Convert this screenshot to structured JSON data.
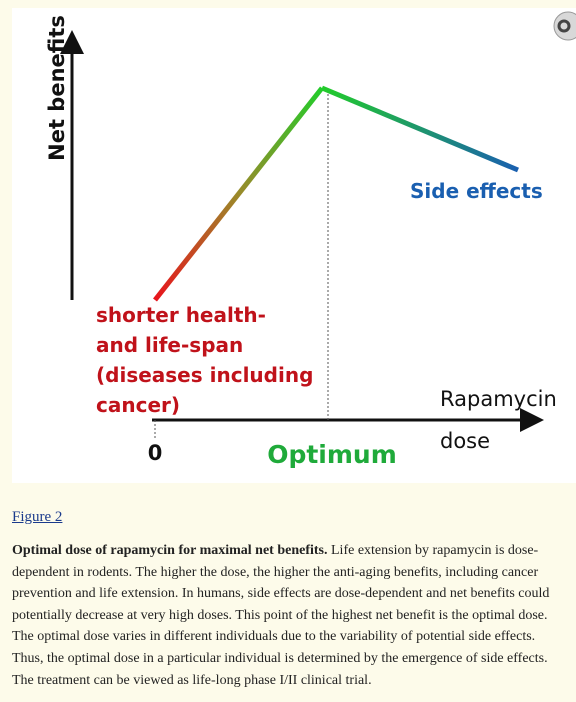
{
  "figure": {
    "y_axis_label": "Net benefits",
    "low_label_lines": [
      "shorter health-",
      "and life-span",
      "(diseases including",
      "cancer)"
    ],
    "side_effects_label": "Side effects",
    "x_axis_label_lines": [
      "Rapamycin",
      "dose"
    ],
    "origin_label": "0",
    "optimum_label": "Optimum",
    "link": "Figure 2"
  },
  "caption": {
    "title": "Optimal dose of rapamycin for maximal net benefits.",
    "text": "Life extension by rapamycin is dose-dependent in rodents. The higher the dose, the higher the anti-aging benefits, including cancer prevention and life extension. In humans, side effects are dose-dependent and net benefits could potentially decrease at very high doses. This point of the highest net benefit is the optimal dose. The optimal dose varies in different individuals due to the variability of potential side effects. Thus, the optimal dose in a particular individual is determined by the emergence of side effects. The treatment can be viewed as life-long phase I/II clinical trial."
  }
}
